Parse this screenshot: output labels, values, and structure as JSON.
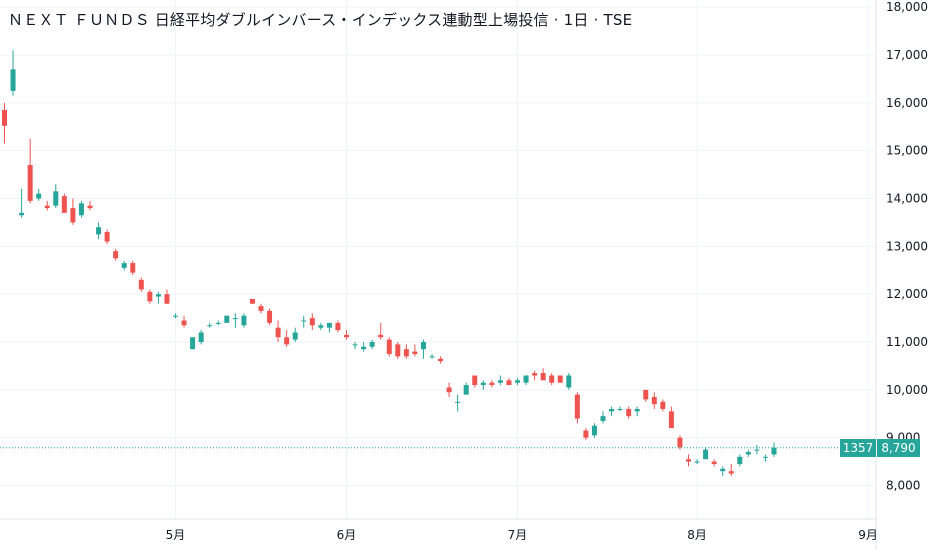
{
  "title": "ＮＥＸＴ ＦＵＮＤＳ 日経平均ダブルインバース・インデックス連動型上場投信 · 1日 · TSE",
  "colors": {
    "up": "#26a69a",
    "down": "#ef5350",
    "grid": "#f0f3fa",
    "text": "#131722",
    "price_line": "#26a69a"
  },
  "price_badge": {
    "symbol": "1357",
    "price": "8,790"
  },
  "chart_data": {
    "type": "candlestick",
    "title": "",
    "xlabel": "",
    "ylabel": "",
    "ylim": [
      7300,
      18150
    ],
    "y_ticks": [
      8000,
      9000,
      10000,
      11000,
      12000,
      13000,
      14000,
      15000,
      16000,
      17000,
      18000
    ],
    "y_tick_labels": [
      "8,000",
      "9,000",
      "10,000",
      "11,000",
      "12,000",
      "13,000",
      "14,000",
      "15,000",
      "16,000",
      "17,000",
      "18,000"
    ],
    "x_ticks": [
      {
        "label": "5月",
        "index": 20
      },
      {
        "label": "6月",
        "index": 40
      },
      {
        "label": "7月",
        "index": 60
      },
      {
        "label": "8月",
        "index": 81
      },
      {
        "label": "9月",
        "index": 101
      }
    ],
    "grid": true,
    "last_price": 8790,
    "candles": [
      [
        15850,
        16000,
        15150,
        15520
      ],
      [
        16250,
        17100,
        16150,
        16700
      ],
      [
        13650,
        14200,
        13600,
        13700
      ],
      [
        14700,
        15250,
        13900,
        13950
      ],
      [
        14000,
        14200,
        13950,
        14100
      ],
      [
        13850,
        13950,
        13750,
        13800
      ],
      [
        13850,
        14300,
        13800,
        14150
      ],
      [
        14050,
        14100,
        13700,
        13700
      ],
      [
        13800,
        14000,
        13450,
        13500
      ],
      [
        13650,
        13950,
        13600,
        13900
      ],
      [
        13850,
        13950,
        13750,
        13800
      ],
      [
        13250,
        13500,
        13150,
        13400
      ],
      [
        13300,
        13350,
        13050,
        13100
      ],
      [
        12900,
        12950,
        12700,
        12750
      ],
      [
        12550,
        12700,
        12500,
        12650
      ],
      [
        12650,
        12700,
        12400,
        12450
      ],
      [
        12300,
        12350,
        12050,
        12100
      ],
      [
        12050,
        12100,
        11800,
        11850
      ],
      [
        11950,
        12050,
        11800,
        12000
      ],
      [
        12000,
        12100,
        11800,
        11800
      ],
      [
        11550,
        11600,
        11500,
        11550
      ],
      [
        11450,
        11550,
        11300,
        11350
      ],
      [
        10850,
        11100,
        10850,
        11100
      ],
      [
        11000,
        11250,
        10950,
        11200
      ],
      [
        11350,
        11400,
        11300,
        11350
      ],
      [
        11400,
        11450,
        11350,
        11400
      ],
      [
        11400,
        11550,
        11400,
        11550
      ],
      [
        11500,
        11600,
        11300,
        11500
      ],
      [
        11350,
        11600,
        11300,
        11550
      ],
      [
        11900,
        11900,
        11800,
        11800
      ],
      [
        11750,
        11800,
        11600,
        11650
      ],
      [
        11650,
        11700,
        11350,
        11400
      ],
      [
        11300,
        11450,
        11000,
        11100
      ],
      [
        11100,
        11250,
        10900,
        10950
      ],
      [
        11050,
        11300,
        11000,
        11200
      ],
      [
        11450,
        11550,
        11300,
        11450
      ],
      [
        11500,
        11600,
        11250,
        11350
      ],
      [
        11300,
        11400,
        11250,
        11350
      ],
      [
        11300,
        11400,
        11200,
        11400
      ],
      [
        11400,
        11450,
        11200,
        11250
      ],
      [
        11150,
        11250,
        11050,
        11100
      ],
      [
        10950,
        11000,
        10850,
        10950
      ],
      [
        10850,
        11000,
        10800,
        10900
      ],
      [
        10900,
        11050,
        10850,
        11000
      ],
      [
        11150,
        11400,
        11050,
        11100
      ],
      [
        11050,
        11100,
        10700,
        10750
      ],
      [
        10950,
        11000,
        10650,
        10700
      ],
      [
        10850,
        10950,
        10650,
        10700
      ],
      [
        10800,
        10950,
        10700,
        10750
      ],
      [
        10850,
        11050,
        10650,
        11000
      ],
      [
        10700,
        10750,
        10650,
        10700
      ],
      [
        10650,
        10700,
        10550,
        10600
      ],
      [
        10050,
        10150,
        9850,
        9950
      ],
      [
        9750,
        9900,
        9550,
        9750
      ],
      [
        9900,
        10150,
        9900,
        10100
      ],
      [
        10300,
        10300,
        10050,
        10100
      ],
      [
        10100,
        10200,
        10000,
        10150
      ],
      [
        10150,
        10200,
        10050,
        10100
      ],
      [
        10150,
        10300,
        10100,
        10200
      ],
      [
        10200,
        10250,
        10100,
        10100
      ],
      [
        10150,
        10250,
        10100,
        10200
      ],
      [
        10150,
        10300,
        10100,
        10300
      ],
      [
        10350,
        10400,
        10200,
        10300
      ],
      [
        10350,
        10450,
        10200,
        10200
      ],
      [
        10300,
        10350,
        10100,
        10150
      ],
      [
        10300,
        10300,
        10150,
        10150
      ],
      [
        10050,
        10350,
        10000,
        10300
      ],
      [
        9900,
        9950,
        9300,
        9400
      ],
      [
        9150,
        9200,
        8950,
        9000
      ],
      [
        9050,
        9300,
        9000,
        9250
      ],
      [
        9350,
        9550,
        9300,
        9450
      ],
      [
        9550,
        9650,
        9450,
        9600
      ],
      [
        9600,
        9650,
        9550,
        9600
      ],
      [
        9600,
        9650,
        9400,
        9450
      ],
      [
        9550,
        9650,
        9450,
        9600
      ],
      [
        10000,
        10000,
        9750,
        9800
      ],
      [
        9850,
        9950,
        9600,
        9700
      ],
      [
        9750,
        9800,
        9550,
        9600
      ],
      [
        9550,
        9650,
        9200,
        9200
      ],
      [
        9000,
        9050,
        8750,
        8800
      ],
      [
        8550,
        8650,
        8400,
        8500
      ],
      [
        8500,
        8550,
        8450,
        8500
      ],
      [
        8550,
        8800,
        8550,
        8750
      ],
      [
        8500,
        8550,
        8400,
        8450
      ],
      [
        8300,
        8400,
        8200,
        8350
      ],
      [
        8300,
        8450,
        8200,
        8250
      ],
      [
        8450,
        8650,
        8400,
        8600
      ],
      [
        8650,
        8750,
        8600,
        8700
      ],
      [
        8750,
        8850,
        8650,
        8750
      ],
      [
        8600,
        8650,
        8500,
        8600
      ],
      [
        8650,
        8900,
        8600,
        8790
      ]
    ]
  }
}
